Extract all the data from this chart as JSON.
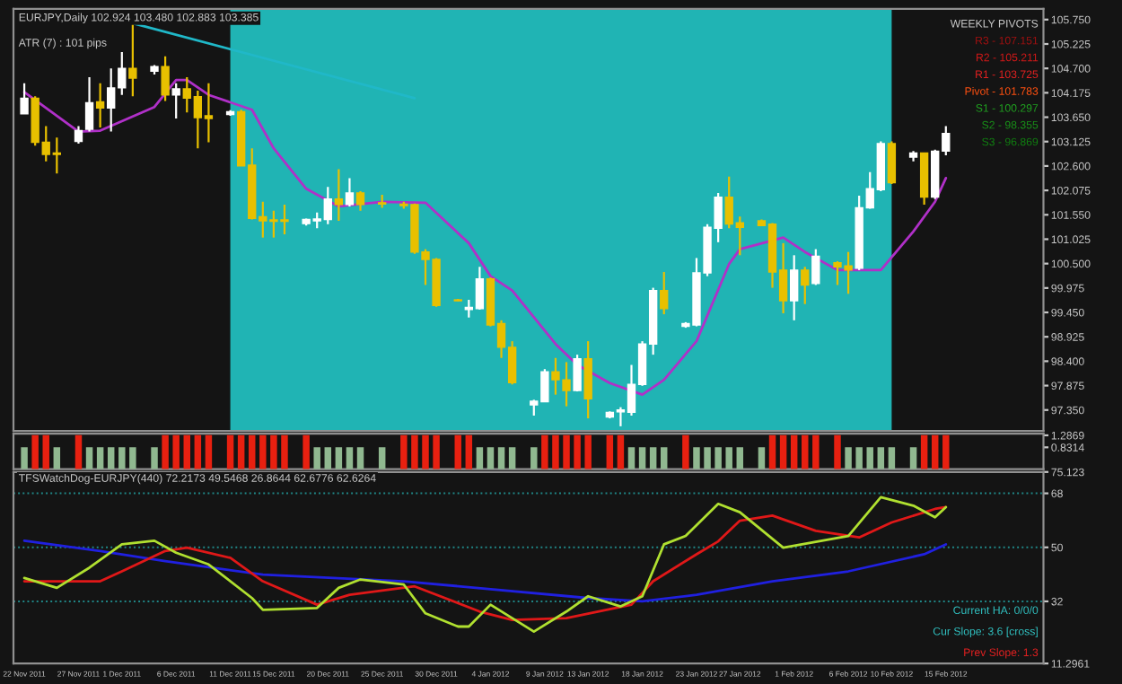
{
  "chart_data": [
    {
      "type": "candlestick",
      "title": "EURJPY,Daily 102.924 103.480 102.883 103.385",
      "x": [
        "2011-11-22",
        "2011-11-23",
        "2011-11-24",
        "2011-11-25",
        "2011-11-27",
        "2011-11-28",
        "2011-11-29",
        "2011-11-30",
        "2011-12-01",
        "2011-12-02",
        "2011-12-04",
        "2011-12-05",
        "2011-12-06",
        "2011-12-07",
        "2011-12-08",
        "2011-12-09",
        "2011-12-11",
        "2011-12-12",
        "2011-12-13",
        "2011-12-14",
        "2011-12-15",
        "2011-12-16",
        "2011-12-18",
        "2011-12-19",
        "2011-12-20",
        "2011-12-21",
        "2011-12-22",
        "2011-12-23",
        "2011-12-25",
        "2011-12-27",
        "2011-12-28",
        "2011-12-29",
        "2011-12-30",
        "2012-01-01",
        "2012-01-02",
        "2012-01-03",
        "2012-01-04",
        "2012-01-05",
        "2012-01-06",
        "2012-01-08",
        "2012-01-09",
        "2012-01-10",
        "2012-01-11",
        "2012-01-12",
        "2012-01-13",
        "2012-01-15",
        "2012-01-16",
        "2012-01-17",
        "2012-01-18",
        "2012-01-19",
        "2012-01-20",
        "2012-01-22",
        "2012-01-23",
        "2012-01-24",
        "2012-01-25",
        "2012-01-26",
        "2012-01-27",
        "2012-01-29",
        "2012-01-30",
        "2012-01-31",
        "2012-02-01",
        "2012-02-02",
        "2012-02-03",
        "2012-02-05",
        "2012-02-06",
        "2012-02-07",
        "2012-02-08",
        "2012-02-09",
        "2012-02-10",
        "2012-02-12",
        "2012-02-13",
        "2012-02-14",
        "2012-02-15"
      ],
      "ohlc": [
        [
          103.72,
          104.38,
          103.72,
          104.06
        ],
        [
          104.06,
          104.1,
          103.04,
          103.11
        ],
        [
          103.11,
          103.46,
          102.7,
          102.85
        ],
        [
          102.88,
          103.21,
          102.44,
          102.85
        ],
        [
          103.13,
          103.46,
          103.08,
          103.36
        ],
        [
          103.39,
          104.51,
          103.34,
          103.96
        ],
        [
          103.98,
          104.38,
          103.43,
          103.85
        ],
        [
          103.85,
          104.7,
          103.34,
          104.28
        ],
        [
          104.28,
          105.05,
          104.13,
          104.7
        ],
        [
          104.7,
          105.69,
          104.1,
          104.49
        ],
        [
          104.64,
          104.77,
          104.57,
          104.74
        ],
        [
          104.74,
          104.96,
          104.0,
          104.13
        ],
        [
          104.13,
          104.38,
          103.62,
          104.26
        ],
        [
          104.26,
          104.51,
          103.75,
          104.06
        ],
        [
          104.09,
          104.22,
          102.98,
          103.64
        ],
        [
          103.68,
          104.38,
          103.11,
          103.62
        ],
        [
          103.71,
          103.8,
          103.68,
          103.77
        ],
        [
          103.77,
          103.81,
          102.6,
          102.6
        ],
        [
          102.62,
          102.98,
          101.45,
          101.47
        ],
        [
          101.51,
          101.83,
          101.06,
          101.42
        ],
        [
          101.44,
          101.64,
          101.06,
          101.41
        ],
        [
          101.44,
          101.77,
          101.13,
          101.41
        ],
        [
          101.36,
          101.47,
          101.32,
          101.45
        ],
        [
          101.42,
          101.6,
          101.26,
          101.46
        ],
        [
          101.45,
          102.15,
          101.35,
          101.89
        ],
        [
          101.89,
          102.53,
          101.42,
          101.77
        ],
        [
          101.77,
          102.34,
          101.73,
          102.02
        ],
        [
          102.02,
          102.06,
          101.64,
          101.77
        ],
        [
          101.81,
          101.98,
          101.7,
          101.78
        ],
        [
          101.78,
          101.83,
          101.68,
          101.75
        ],
        [
          101.77,
          101.79,
          100.71,
          100.75
        ],
        [
          100.75,
          100.81,
          100.04,
          100.59
        ],
        [
          100.59,
          100.62,
          99.57,
          99.6
        ],
        [
          99.72,
          99.74,
          99.69,
          99.7
        ],
        [
          99.51,
          99.72,
          99.34,
          99.56
        ],
        [
          99.53,
          100.43,
          99.51,
          100.17
        ],
        [
          100.17,
          100.2,
          99.15,
          99.18
        ],
        [
          99.21,
          99.28,
          98.47,
          98.7
        ],
        [
          98.7,
          98.83,
          97.9,
          97.94
        ],
        [
          97.46,
          97.57,
          97.23,
          97.54
        ],
        [
          97.53,
          98.23,
          97.52,
          98.17
        ],
        [
          98.17,
          98.47,
          97.68,
          98.0
        ],
        [
          98.0,
          98.38,
          97.43,
          97.77
        ],
        [
          97.77,
          98.54,
          97.75,
          98.45
        ],
        [
          98.45,
          98.83,
          97.17,
          97.59
        ],
        [
          97.2,
          97.32,
          97.17,
          97.3
        ],
        [
          97.31,
          97.41,
          97.0,
          97.35
        ],
        [
          97.3,
          98.32,
          97.23,
          97.9
        ],
        [
          97.9,
          98.83,
          97.87,
          98.77
        ],
        [
          98.77,
          99.98,
          98.54,
          99.92
        ],
        [
          99.92,
          100.32,
          99.41,
          99.53
        ],
        [
          99.15,
          99.24,
          99.12,
          99.21
        ],
        [
          99.18,
          100.62,
          99.15,
          100.3
        ],
        [
          100.3,
          101.35,
          100.23,
          101.28
        ],
        [
          101.26,
          102.02,
          100.96,
          101.93
        ],
        [
          101.93,
          102.37,
          101.26,
          101.35
        ],
        [
          101.38,
          101.51,
          100.68,
          101.28
        ],
        [
          101.42,
          101.45,
          101.32,
          101.32
        ],
        [
          101.35,
          101.37,
          99.98,
          100.32
        ],
        [
          100.36,
          100.94,
          99.43,
          99.7
        ],
        [
          99.7,
          100.68,
          99.28,
          100.36
        ],
        [
          100.36,
          100.43,
          99.63,
          100.04
        ],
        [
          100.07,
          100.81,
          100.04,
          100.66
        ],
        [
          100.52,
          100.55,
          100.04,
          100.43
        ],
        [
          100.45,
          100.75,
          99.85,
          100.36
        ],
        [
          100.4,
          101.96,
          100.36,
          101.7
        ],
        [
          101.7,
          102.47,
          101.68,
          102.11
        ],
        [
          102.09,
          103.13,
          102.06,
          103.08
        ],
        [
          103.08,
          103.13,
          102.21,
          102.24
        ],
        [
          102.79,
          102.92,
          102.7,
          102.88
        ],
        [
          102.88,
          102.89,
          101.77,
          101.93
        ],
        [
          101.93,
          102.95,
          101.89,
          102.92
        ],
        [
          102.92,
          103.46,
          102.83,
          103.3
        ]
      ],
      "colors": [
        "#ffffff",
        "#e8c000",
        "#e8c000",
        "#e8c000",
        "#ffffff",
        "#ffffff",
        "#e8c000",
        "#ffffff",
        "#ffffff",
        "#e8c000",
        "#ffffff",
        "#e8c000",
        "#ffffff",
        "#e8c000",
        "#e8c000",
        "#e8c000",
        "#ffffff",
        "#e8c000",
        "#e8c000",
        "#e8c000",
        "#e8c000",
        "#e8c000",
        "#ffffff",
        "#ffffff",
        "#ffffff",
        "#e8c000",
        "#ffffff",
        "#e8c000",
        "#e8c000",
        "#e8c000",
        "#e8c000",
        "#e8c000",
        "#e8c000",
        "#e8c000",
        "#ffffff",
        "#ffffff",
        "#e8c000",
        "#e8c000",
        "#e8c000",
        "#ffffff",
        "#ffffff",
        "#e8c000",
        "#e8c000",
        "#ffffff",
        "#e8c000",
        "#ffffff",
        "#ffffff",
        "#ffffff",
        "#ffffff",
        "#ffffff",
        "#e8c000",
        "#ffffff",
        "#ffffff",
        "#ffffff",
        "#ffffff",
        "#e8c000",
        "#e8c000",
        "#e8c000",
        "#e8c000",
        "#e8c000",
        "#ffffff",
        "#e8c000",
        "#ffffff",
        "#e8c000",
        "#e8c000",
        "#ffffff",
        "#ffffff",
        "#ffffff",
        "#e8c000",
        "#ffffff",
        "#e8c000",
        "#ffffff",
        "#ffffff"
      ],
      "series": [
        {
          "type": "line",
          "color": "#b030c8",
          "x": [
            "2011-11-22",
            "2011-11-27",
            "2011-11-29",
            "2011-12-04",
            "2011-12-06",
            "2011-12-07",
            "2011-12-09",
            "2011-12-13",
            "2011-12-15",
            "2011-12-18",
            "2011-12-21",
            "2011-12-25",
            "2011-12-29",
            "2012-01-02",
            "2012-01-04",
            "2012-01-06",
            "2012-01-10",
            "2012-01-12",
            "2012-01-15",
            "2012-01-18",
            "2012-01-20",
            "2012-01-23",
            "2012-01-26",
            "2012-01-27",
            "2012-01-31",
            "2012-02-02",
            "2012-02-05",
            "2012-02-09",
            "2012-02-12",
            "2012-02-14",
            "2012-02-15"
          ],
          "values": [
            104.19,
            103.34,
            103.36,
            103.87,
            104.45,
            104.45,
            104.13,
            103.81,
            102.98,
            102.11,
            101.73,
            101.83,
            101.81,
            100.94,
            100.23,
            99.92,
            98.77,
            98.32,
            97.93,
            97.68,
            98.0,
            98.83,
            100.49,
            100.81,
            101.06,
            100.75,
            100.36,
            100.36,
            101.19,
            101.83,
            102.34
          ]
        },
        {
          "type": "line",
          "color": "#20b8c8",
          "x": [
            "2011-12-02",
            "2011-12-28"
          ],
          "values": [
            105.67,
            104.06
          ]
        }
      ],
      "bands": [
        {
          "axis": "x",
          "from": "2011-12-11",
          "to": "2012-02-10",
          "color": "#20b4b4"
        }
      ],
      "annotations": [
        "ATR (7) : 101 pips",
        "WEEKLY PIVOTS",
        "R3 - 107.151",
        "R2 - 105.211",
        "R1 - 103.725",
        "Pivot - 101.783",
        "S1 - 100.297",
        "S2 - 98.355",
        "S3 - 96.869"
      ],
      "xlim": [
        "2011-11-21",
        "2012-02-24"
      ],
      "ylim": [
        96.9,
        105.98
      ],
      "xticks": [
        {
          "value": "2011-11-22",
          "label": null
        },
        {
          "value": "2012-02-15",
          "label": null
        }
      ],
      "yticks": [
        {
          "value": 105.75,
          "label": "105.750"
        },
        {
          "value": 105.225,
          "label": "105.225"
        },
        {
          "value": 104.7,
          "label": "104.700"
        },
        {
          "value": 104.175,
          "label": "104.175"
        },
        {
          "value": 103.65,
          "label": "103.650"
        },
        {
          "value": 103.125,
          "label": "103.125"
        },
        {
          "value": 102.6,
          "label": "102.600"
        },
        {
          "value": 102.075,
          "label": "102.075"
        },
        {
          "value": 101.55,
          "label": "101.550"
        },
        {
          "value": 101.025,
          "label": "101.025"
        },
        {
          "value": 100.5,
          "label": "100.500"
        },
        {
          "value": 99.975,
          "label": "99.975"
        },
        {
          "value": 99.45,
          "label": "99.450"
        },
        {
          "value": 98.925,
          "label": "98.925"
        },
        {
          "value": 98.4,
          "label": "98.400"
        },
        {
          "value": 97.875,
          "label": "97.875"
        },
        {
          "value": 97.35,
          "label": "97.350"
        }
      ],
      "tick_labels": "y",
      "grid": false,
      "legend": false
    },
    {
      "type": "bar",
      "x": [
        "2011-11-22",
        "2011-11-23",
        "2011-11-24",
        "2011-11-25",
        "2011-11-27",
        "2011-11-28",
        "2011-11-29",
        "2011-11-30",
        "2011-12-01",
        "2011-12-02",
        "2011-12-04",
        "2011-12-05",
        "2011-12-06",
        "2011-12-07",
        "2011-12-08",
        "2011-12-09",
        "2011-12-11",
        "2011-12-12",
        "2011-12-13",
        "2011-12-14",
        "2011-12-15",
        "2011-12-16",
        "2011-12-18",
        "2011-12-19",
        "2011-12-20",
        "2011-12-21",
        "2011-12-22",
        "2011-12-23",
        "2011-12-25",
        "2011-12-27",
        "2011-12-28",
        "2011-12-29",
        "2011-12-30",
        "2012-01-01",
        "2012-01-02",
        "2012-01-03",
        "2012-01-04",
        "2012-01-05",
        "2012-01-06",
        "2012-01-08",
        "2012-01-09",
        "2012-01-10",
        "2012-01-11",
        "2012-01-12",
        "2012-01-13",
        "2012-01-15",
        "2012-01-16",
        "2012-01-17",
        "2012-01-18",
        "2012-01-19",
        "2012-01-20",
        "2012-01-22",
        "2012-01-23",
        "2012-01-24",
        "2012-01-25",
        "2012-01-26",
        "2012-01-27",
        "2012-01-29",
        "2012-01-30",
        "2012-01-31",
        "2012-02-01",
        "2012-02-02",
        "2012-02-03",
        "2012-02-05",
        "2012-02-06",
        "2012-02-07",
        "2012-02-08",
        "2012-02-09",
        "2012-02-10",
        "2012-02-12",
        "2012-02-13",
        "2012-02-14",
        "2012-02-15"
      ],
      "values": [
        0.83,
        1.29,
        1.29,
        0.83,
        1.29,
        0.83,
        0.83,
        0.83,
        0.83,
        0.83,
        0.83,
        1.29,
        1.29,
        1.29,
        1.29,
        1.29,
        1.29,
        1.29,
        1.29,
        1.29,
        1.29,
        1.29,
        1.29,
        0.83,
        0.83,
        0.83,
        0.83,
        0.83,
        0.83,
        1.29,
        1.29,
        1.29,
        1.29,
        1.29,
        1.29,
        0.83,
        0.83,
        0.83,
        0.83,
        0.83,
        1.29,
        1.29,
        1.29,
        1.29,
        1.29,
        1.29,
        1.29,
        0.83,
        0.83,
        0.83,
        0.83,
        1.29,
        0.83,
        0.83,
        0.83,
        0.83,
        0.83,
        0.83,
        1.29,
        1.29,
        1.29,
        1.29,
        1.29,
        1.29,
        0.83,
        0.83,
        0.83,
        0.83,
        0.83,
        0.83,
        1.29,
        1.29,
        1.29
      ],
      "colors": [
        "#90b890",
        "#e82010",
        "#e82010",
        "#90b890",
        "#e82010",
        "#90b890",
        "#90b890",
        "#90b890",
        "#90b890",
        "#90b890",
        "#90b890",
        "#e82010",
        "#e82010",
        "#e82010",
        "#e82010",
        "#e82010",
        "#e82010",
        "#e82010",
        "#e82010",
        "#e82010",
        "#e82010",
        "#e82010",
        "#e82010",
        "#90b890",
        "#90b890",
        "#90b890",
        "#90b890",
        "#90b890",
        "#90b890",
        "#e82010",
        "#e82010",
        "#e82010",
        "#e82010",
        "#e82010",
        "#e82010",
        "#90b890",
        "#90b890",
        "#90b890",
        "#90b890",
        "#90b890",
        "#e82010",
        "#e82010",
        "#e82010",
        "#e82010",
        "#e82010",
        "#e82010",
        "#e82010",
        "#90b890",
        "#90b890",
        "#90b890",
        "#90b890",
        "#e82010",
        "#90b890",
        "#90b890",
        "#90b890",
        "#90b890",
        "#90b890",
        "#90b890",
        "#e82010",
        "#e82010",
        "#e82010",
        "#e82010",
        "#e82010",
        "#e82010",
        "#90b890",
        "#90b890",
        "#90b890",
        "#90b890",
        "#90b890",
        "#90b890",
        "#e82010",
        "#e82010",
        "#e82010"
      ],
      "xlim": [
        "2011-11-21",
        "2012-02-24"
      ],
      "ylim": [
        0,
        1.35
      ],
      "yticks": [
        {
          "value": 1.2869,
          "label": "1.2869"
        },
        {
          "value": 0.8314,
          "label": "0.8314"
        }
      ],
      "tick_labels": "y",
      "grid": false,
      "legend": false
    },
    {
      "type": "line",
      "title": "TFSWatchDog-EURJPY(440) 72.2173 49.5468 26.8644 62.6776 62.6264",
      "series": [
        {
          "color": "#2020e0",
          "x": [
            "2011-11-22",
            "2011-11-29",
            "2011-12-05",
            "2011-12-14",
            "2011-12-27",
            "2012-01-13",
            "2012-01-18",
            "2012-01-23",
            "2012-01-30",
            "2012-02-06",
            "2012-02-13",
            "2012-02-15"
          ],
          "values": [
            52.2,
            48.8,
            45.4,
            40.9,
            38.7,
            33.1,
            32.0,
            34.2,
            38.7,
            42.0,
            47.7,
            51.0
          ]
        },
        {
          "color": "#e01818",
          "x": [
            "2011-11-22",
            "2011-11-29",
            "2011-12-01",
            "2011-12-05",
            "2011-12-07",
            "2011-12-11",
            "2011-12-14",
            "2011-12-19",
            "2011-12-22",
            "2011-12-28",
            "2012-01-03",
            "2012-01-06",
            "2012-01-11",
            "2012-01-17",
            "2012-01-19",
            "2012-01-23",
            "2012-01-25",
            "2012-01-27",
            "2012-01-30",
            "2012-02-03",
            "2012-02-07",
            "2012-02-10",
            "2012-02-14",
            "2012-02-15"
          ],
          "values": [
            38.7,
            38.7,
            42.0,
            48.8,
            49.9,
            46.5,
            38.7,
            30.9,
            34.2,
            37.0,
            28.6,
            25.8,
            26.4,
            30.9,
            38.7,
            47.7,
            52.0,
            58.9,
            60.6,
            55.5,
            53.3,
            58.3,
            62.8,
            63.4
          ]
        },
        {
          "color": "#b0e030",
          "x": [
            "2011-11-22",
            "2011-11-25",
            "2011-11-28",
            "2011-12-01",
            "2011-12-04",
            "2011-12-06",
            "2011-12-09",
            "2011-12-13",
            "2011-12-14",
            "2011-12-19",
            "2011-12-21",
            "2011-12-23",
            "2011-12-27",
            "2011-12-29",
            "2012-01-01",
            "2012-01-02",
            "2012-01-04",
            "2012-01-08",
            "2012-01-11",
            "2012-01-13",
            "2012-01-16",
            "2012-01-18",
            "2012-01-20",
            "2012-01-22",
            "2012-01-25",
            "2012-01-27",
            "2012-01-31",
            "2012-02-06",
            "2012-02-09",
            "2012-02-12",
            "2012-02-14",
            "2012-02-15"
          ],
          "values": [
            39.8,
            36.5,
            43.2,
            51.0,
            52.2,
            48.2,
            44.3,
            33.1,
            29.2,
            29.8,
            36.5,
            39.3,
            37.6,
            28.0,
            23.6,
            23.6,
            30.9,
            21.9,
            28.6,
            33.7,
            30.3,
            33.7,
            51.0,
            53.8,
            64.5,
            61.7,
            49.9,
            53.8,
            66.7,
            63.9,
            60.0,
            63.4
          ]
        }
      ],
      "ref_lines": [
        {
          "axis": "y",
          "value": 68,
          "color": "#208888",
          "line_style": "dotted"
        },
        {
          "axis": "y",
          "value": 50,
          "color": "#208888",
          "line_style": "dotted"
        },
        {
          "axis": "y",
          "value": 32,
          "color": "#208888",
          "line_style": "dotted"
        }
      ],
      "annotations": [
        "Current HA: 0/0/0",
        "Cur Slope: 3.6 [cross]",
        "Prev Slope: 1.3"
      ],
      "xlim": [
        "2011-11-21",
        "2012-02-24"
      ],
      "ylim": [
        11.2961,
        75.123
      ],
      "xticks": [
        {
          "value": "2011-11-22",
          "label": "22 Nov 2011"
        },
        {
          "value": "2011-11-27",
          "label": "27 Nov 2011"
        },
        {
          "value": "2011-12-01",
          "label": "1 Dec 2011"
        },
        {
          "value": "2011-12-06",
          "label": "6 Dec 2011"
        },
        {
          "value": "2011-12-11",
          "label": "11 Dec 2011"
        },
        {
          "value": "2011-12-15",
          "label": "15 Dec 2011"
        },
        {
          "value": "2011-12-20",
          "label": "20 Dec 2011"
        },
        {
          "value": "2011-12-25",
          "label": "25 Dec 2011"
        },
        {
          "value": "2011-12-30",
          "label": "30 Dec 2011"
        },
        {
          "value": "2012-01-04",
          "label": "4 Jan 2012"
        },
        {
          "value": "2012-01-09",
          "label": "9 Jan 2012"
        },
        {
          "value": "2012-01-13",
          "label": "13 Jan 2012"
        },
        {
          "value": "2012-01-18",
          "label": "18 Jan 2012"
        },
        {
          "value": "2012-01-23",
          "label": "23 Jan 2012"
        },
        {
          "value": "2012-01-27",
          "label": "27 Jan 2012"
        },
        {
          "value": "2012-02-01",
          "label": "1 Feb 2012"
        },
        {
          "value": "2012-02-06",
          "label": "6 Feb 2012"
        },
        {
          "value": "2012-02-10",
          "label": "10 Feb 2012"
        },
        {
          "value": "2012-02-15",
          "label": "15 Feb 2012"
        }
      ],
      "yticks": [
        {
          "value": 75.123,
          "label": "75.123"
        },
        68,
        50,
        32,
        {
          "value": 11.2961,
          "label": "11.2961"
        }
      ],
      "marker": "none",
      "line_style": "solid",
      "grid": false,
      "legend": false
    }
  ]
}
